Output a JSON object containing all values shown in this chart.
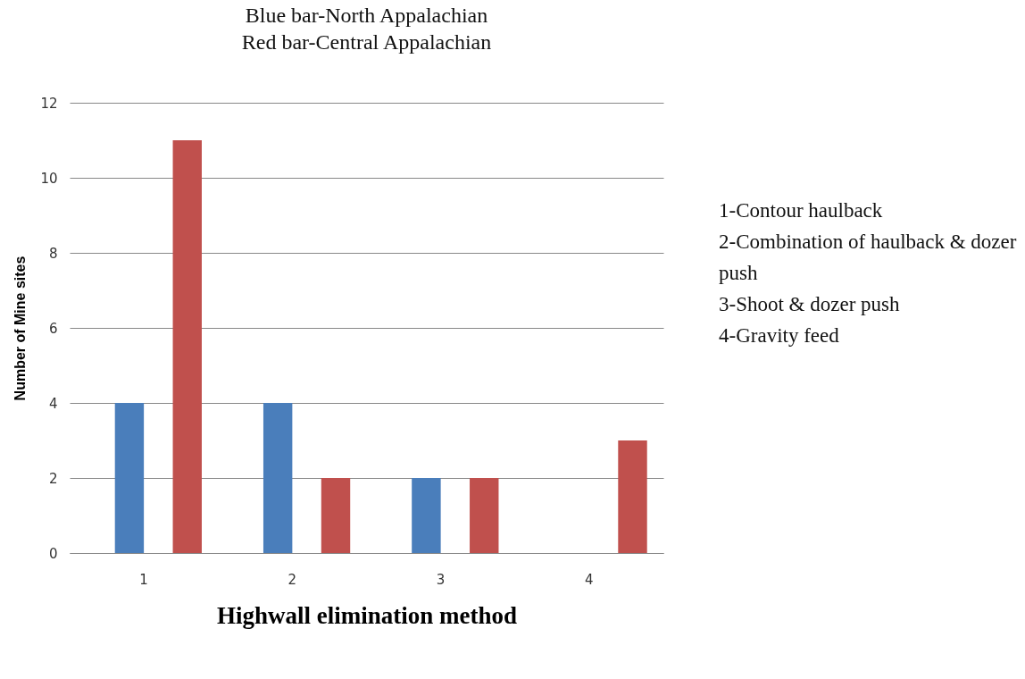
{
  "chart_data": {
    "type": "bar",
    "title": "Blue bar-North Appalachian",
    "subtitle": "Red bar-Central Appalachian",
    "xlabel": "Highwall elimination  method",
    "ylabel": "Number of Mine sites",
    "categories": [
      "1",
      "2",
      "3",
      "4"
    ],
    "series": [
      {
        "color": "#4a7ebb",
        "values": [
          4,
          4,
          2,
          null
        ]
      },
      {
        "color": "#c0504d",
        "values": [
          11,
          2,
          2,
          3
        ]
      }
    ],
    "ylim": [
      0,
      12
    ],
    "yticks": [
      0,
      2,
      4,
      6,
      8,
      10,
      12
    ],
    "grid": "y",
    "legend": false,
    "annotations": [
      "1-Contour haulback",
      "2-Combination of haulback & dozer push",
      "3-Shoot & dozer push",
      "4-Gravity feed"
    ]
  }
}
